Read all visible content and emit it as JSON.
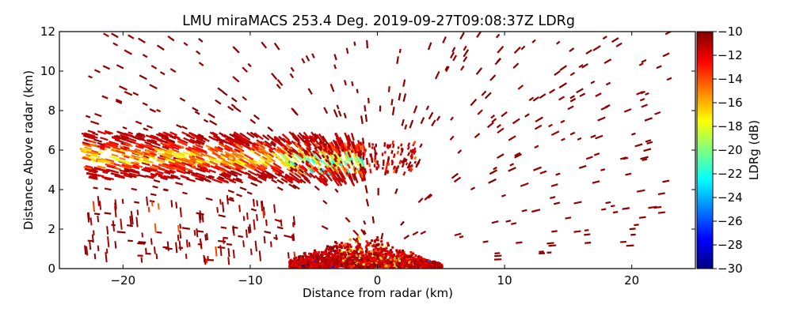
{
  "chart_data": {
    "type": "scatter",
    "title": "LMU miraMACS 253.4 Deg. 2019-09-27T09:08:37Z  LDRg",
    "xlabel": "Distance from radar (km)",
    "ylabel": "Distance Above radar  (km)",
    "xlim": [
      -25,
      25
    ],
    "ylim": [
      0,
      12
    ],
    "xticks": [
      -20,
      -10,
      0,
      10,
      20
    ],
    "xtick_labels": [
      "−20",
      "−10",
      "0",
      "10",
      "20"
    ],
    "yticks": [
      0,
      2,
      4,
      6,
      8,
      10,
      12
    ],
    "ytick_labels": [
      "0",
      "2",
      "4",
      "6",
      "8",
      "10",
      "12"
    ],
    "grid": false,
    "colorbar": {
      "label": "LDRg (dB)",
      "range": [
        -30,
        -10
      ],
      "ticks": [
        -10,
        -12,
        -14,
        -16,
        -18,
        -20,
        -22,
        -24,
        -26,
        -28,
        -30
      ],
      "tick_labels": [
        "−10",
        "−12",
        "−14",
        "−16",
        "−18",
        "−20",
        "−22",
        "−24",
        "−26",
        "−28",
        "−30"
      ],
      "colormap": "jet",
      "colormap_stops": [
        "#00007f",
        "#0000ff",
        "#007fff",
        "#00ffff",
        "#7fff7f",
        "#ffff00",
        "#ff7f00",
        "#ff0000",
        "#7f0000"
      ]
    },
    "regions": [
      {
        "name": "mid-level cloud layer",
        "x_range": [
          -23,
          -1
        ],
        "y_range": [
          4.6,
          7.2
        ],
        "ldr_range": [
          -22,
          -10
        ],
        "note": "yellow/orange/green core near 5.2-6 km"
      },
      {
        "name": "cloud layer tail",
        "x_range": [
          -7,
          3
        ],
        "y_range": [
          4.8,
          6.4
        ],
        "ldr_range": [
          -23,
          -10
        ]
      },
      {
        "name": "near-radar clutter",
        "x_range": [
          -7,
          5
        ],
        "y_range": [
          0,
          1.6
        ],
        "ldr_range": [
          -30,
          -10
        ]
      },
      {
        "name": "sparse noise",
        "x_range": [
          -23,
          23
        ],
        "y_range": [
          0,
          12
        ],
        "ldr_range": [
          -11,
          -10
        ]
      }
    ]
  }
}
